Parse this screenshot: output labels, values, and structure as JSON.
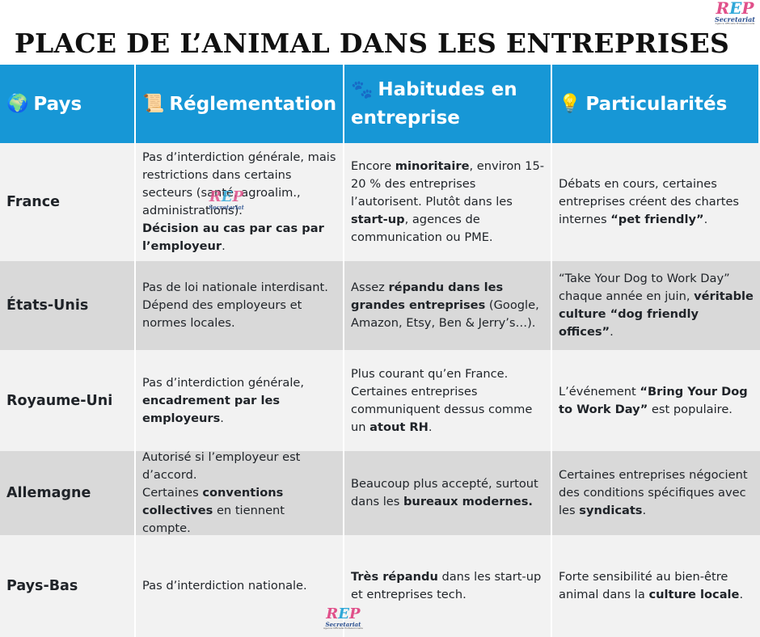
{
  "title": "PLACE DE L’ANIMAL DANS LES ENTREPRISES",
  "logo": {
    "mark_r": "R",
    "mark_e": "E",
    "mark_p": "P",
    "sub": "Secretariat",
    "tag": "Agence Officielle Professionnelle"
  },
  "headers": [
    {
      "icon": "globe-icon",
      "glyph": "🌍",
      "label": "Pays"
    },
    {
      "icon": "scroll-icon",
      "glyph": "📜",
      "label": "Réglementation"
    },
    {
      "icon": "paw-icon",
      "glyph": "🐾",
      "label": "Habitudes en entreprise"
    },
    {
      "icon": "bulb-icon",
      "glyph": "💡",
      "label": "Particularités"
    }
  ],
  "rows": [
    {
      "country": "France",
      "reg": {
        "t1": "Pas d’interdiction générale, mais restrictions dans certains secteurs (santé, agroalim., administrations).",
        "b1": "Décision au cas par cas par l’employeur",
        "t2": "."
      },
      "hab": {
        "t1": "Encore ",
        "b1": "minoritaire",
        "t2": ", environ 15-20 % des entreprises l’autorisent. Plutôt dans les ",
        "b2": "start-up",
        "t3": ", agences de communication ou PME."
      },
      "part": {
        "t1": "Débats en cours, certaines entreprises créent des chartes internes ",
        "b1": "“pet friendly”",
        "t2": "."
      }
    },
    {
      "country": "États-Unis",
      "reg": {
        "t1": "Pas de loi nationale interdisant. Dépend des employeurs et normes locales."
      },
      "hab": {
        "t1": "Assez ",
        "b1": "répandu dans les grandes entreprises",
        "t2": " (Google, Amazon, Etsy, Ben & Jerry’s…)."
      },
      "part": {
        "t1": "“Take Your Dog to Work Day” chaque année en juin, ",
        "b1": "véritable culture “dog friendly offices”",
        "t2": "."
      }
    },
    {
      "country": "Royaume-Uni",
      "reg": {
        "t1": "Pas d’interdiction générale, ",
        "b1": "encadrement par les employeurs",
        "t2": "."
      },
      "hab": {
        "t1": "Plus courant qu’en France. Certaines entreprises communiquent dessus comme un ",
        "b1": "atout RH",
        "t2": "."
      },
      "part": {
        "t1": "L’événement ",
        "b1": "“Bring Your Dog to Work Day”",
        "t2": " est populaire."
      }
    },
    {
      "country": "Allemagne",
      "reg": {
        "t1": "Autorisé si l’employeur est d’accord.",
        "t2": "Certaines ",
        "b1": "conventions collectives",
        "t3": " en tiennent compte."
      },
      "hab": {
        "t1": "Beaucoup plus accepté, surtout dans les ",
        "b1": "bureaux modernes."
      },
      "part": {
        "t1": "Certaines entreprises négocient des conditions spécifiques avec les ",
        "b1": "syndicats",
        "t2": "."
      }
    },
    {
      "country": "Pays-Bas",
      "reg": {
        "t1": "Pas d’interdiction nationale."
      },
      "hab": {
        "b1": "Très répandu",
        "t1": " dans les start-up et entreprises tech."
      },
      "part": {
        "t1": "Forte sensibilité au bien-être animal dans la ",
        "b1": "culture locale",
        "t2": "."
      }
    }
  ],
  "colors": {
    "header_bg": "#1797d6",
    "row_light": "#f2f2f2",
    "row_dark": "#d9d9d9"
  }
}
